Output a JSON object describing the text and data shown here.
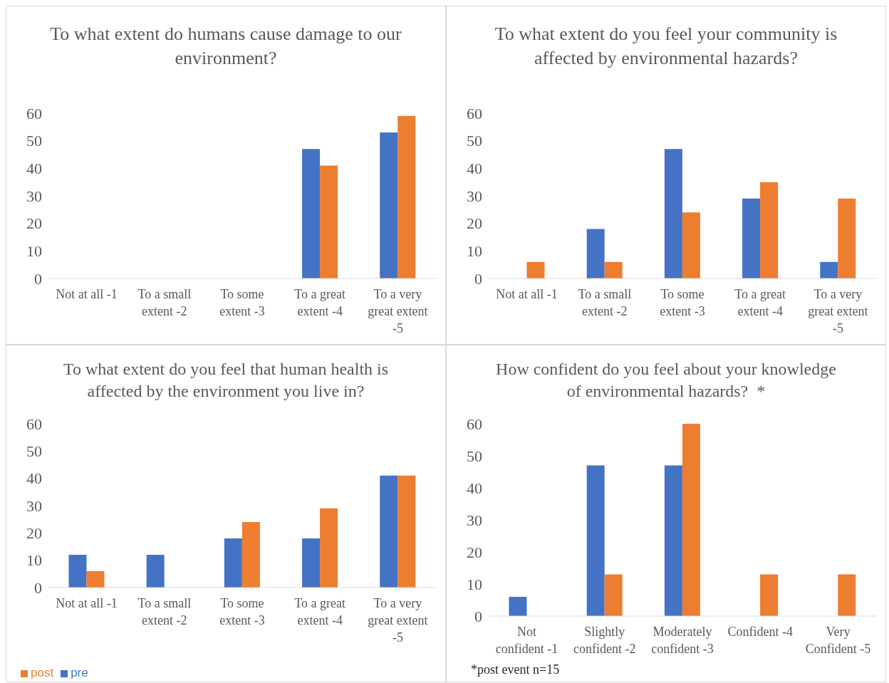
{
  "chart_data": [
    {
      "type": "bar",
      "title": "To what extent do humans cause damage to our environment?",
      "categories": [
        "Not at all -1",
        "To a small extent -2",
        "To some extent -3",
        "To a great extent -4",
        "To a very great extent -5"
      ],
      "series": [
        {
          "color": "#4472c4",
          "values": [
            0,
            0,
            0,
            47,
            53
          ]
        },
        {
          "color": "#ed7d31",
          "values": [
            0,
            0,
            0,
            41,
            59
          ]
        }
      ],
      "ylim": [
        0,
        60
      ],
      "yticks": [
        0,
        10,
        20,
        30,
        40,
        50,
        60
      ],
      "grid": false,
      "legend": false
    },
    {
      "type": "bar",
      "title": "To what extent do you feel your community is affected by environmental hazards?",
      "categories": [
        "Not at all -1",
        "To a small extent -2",
        "To some extent -3",
        "To a great extent -4",
        "To a very great extent -5"
      ],
      "series": [
        {
          "color": "#4472c4",
          "values": [
            0,
            18,
            47,
            29,
            6
          ]
        },
        {
          "color": "#ed7d31",
          "values": [
            6,
            6,
            24,
            35,
            29
          ]
        }
      ],
      "ylim": [
        0,
        60
      ],
      "yticks": [
        0,
        10,
        20,
        30,
        40,
        50,
        60
      ],
      "grid": false,
      "legend": false
    },
    {
      "type": "bar",
      "title": "To what extent do you feel that human health is affected by the environment you live in?",
      "categories": [
        "Not at all -1",
        "To a small extent -2",
        "To some extent -3",
        "To a great extent -4",
        "To a very great extent -5"
      ],
      "series": [
        {
          "name": "pre",
          "color": "#4472c4",
          "values": [
            12,
            12,
            18,
            18,
            41
          ]
        },
        {
          "name": "post",
          "color": "#ed7d31",
          "values": [
            6,
            0,
            24,
            29,
            41
          ]
        }
      ],
      "ylim": [
        0,
        60
      ],
      "yticks": [
        0,
        10,
        20,
        30,
        40,
        50,
        60
      ],
      "grid": false,
      "legend": "bottom left"
    },
    {
      "type": "bar",
      "title": "How confident do you feel about your knowledge of environmental hazards?  *",
      "categories": [
        "Not confident -1",
        "Slightly confident -2",
        "Moderately confident -3",
        "Confident -4",
        "Very Confident -5"
      ],
      "series": [
        {
          "color": "#4472c4",
          "values": [
            6,
            47,
            47,
            0,
            0
          ]
        },
        {
          "color": "#ed7d31",
          "values": [
            0,
            13,
            60,
            13,
            13
          ]
        }
      ],
      "ylim": [
        0,
        60
      ],
      "yticks": [
        0,
        10,
        20,
        30,
        40,
        50,
        60
      ],
      "grid": false,
      "legend": false,
      "annotations": [
        "*post event n=15"
      ]
    }
  ]
}
